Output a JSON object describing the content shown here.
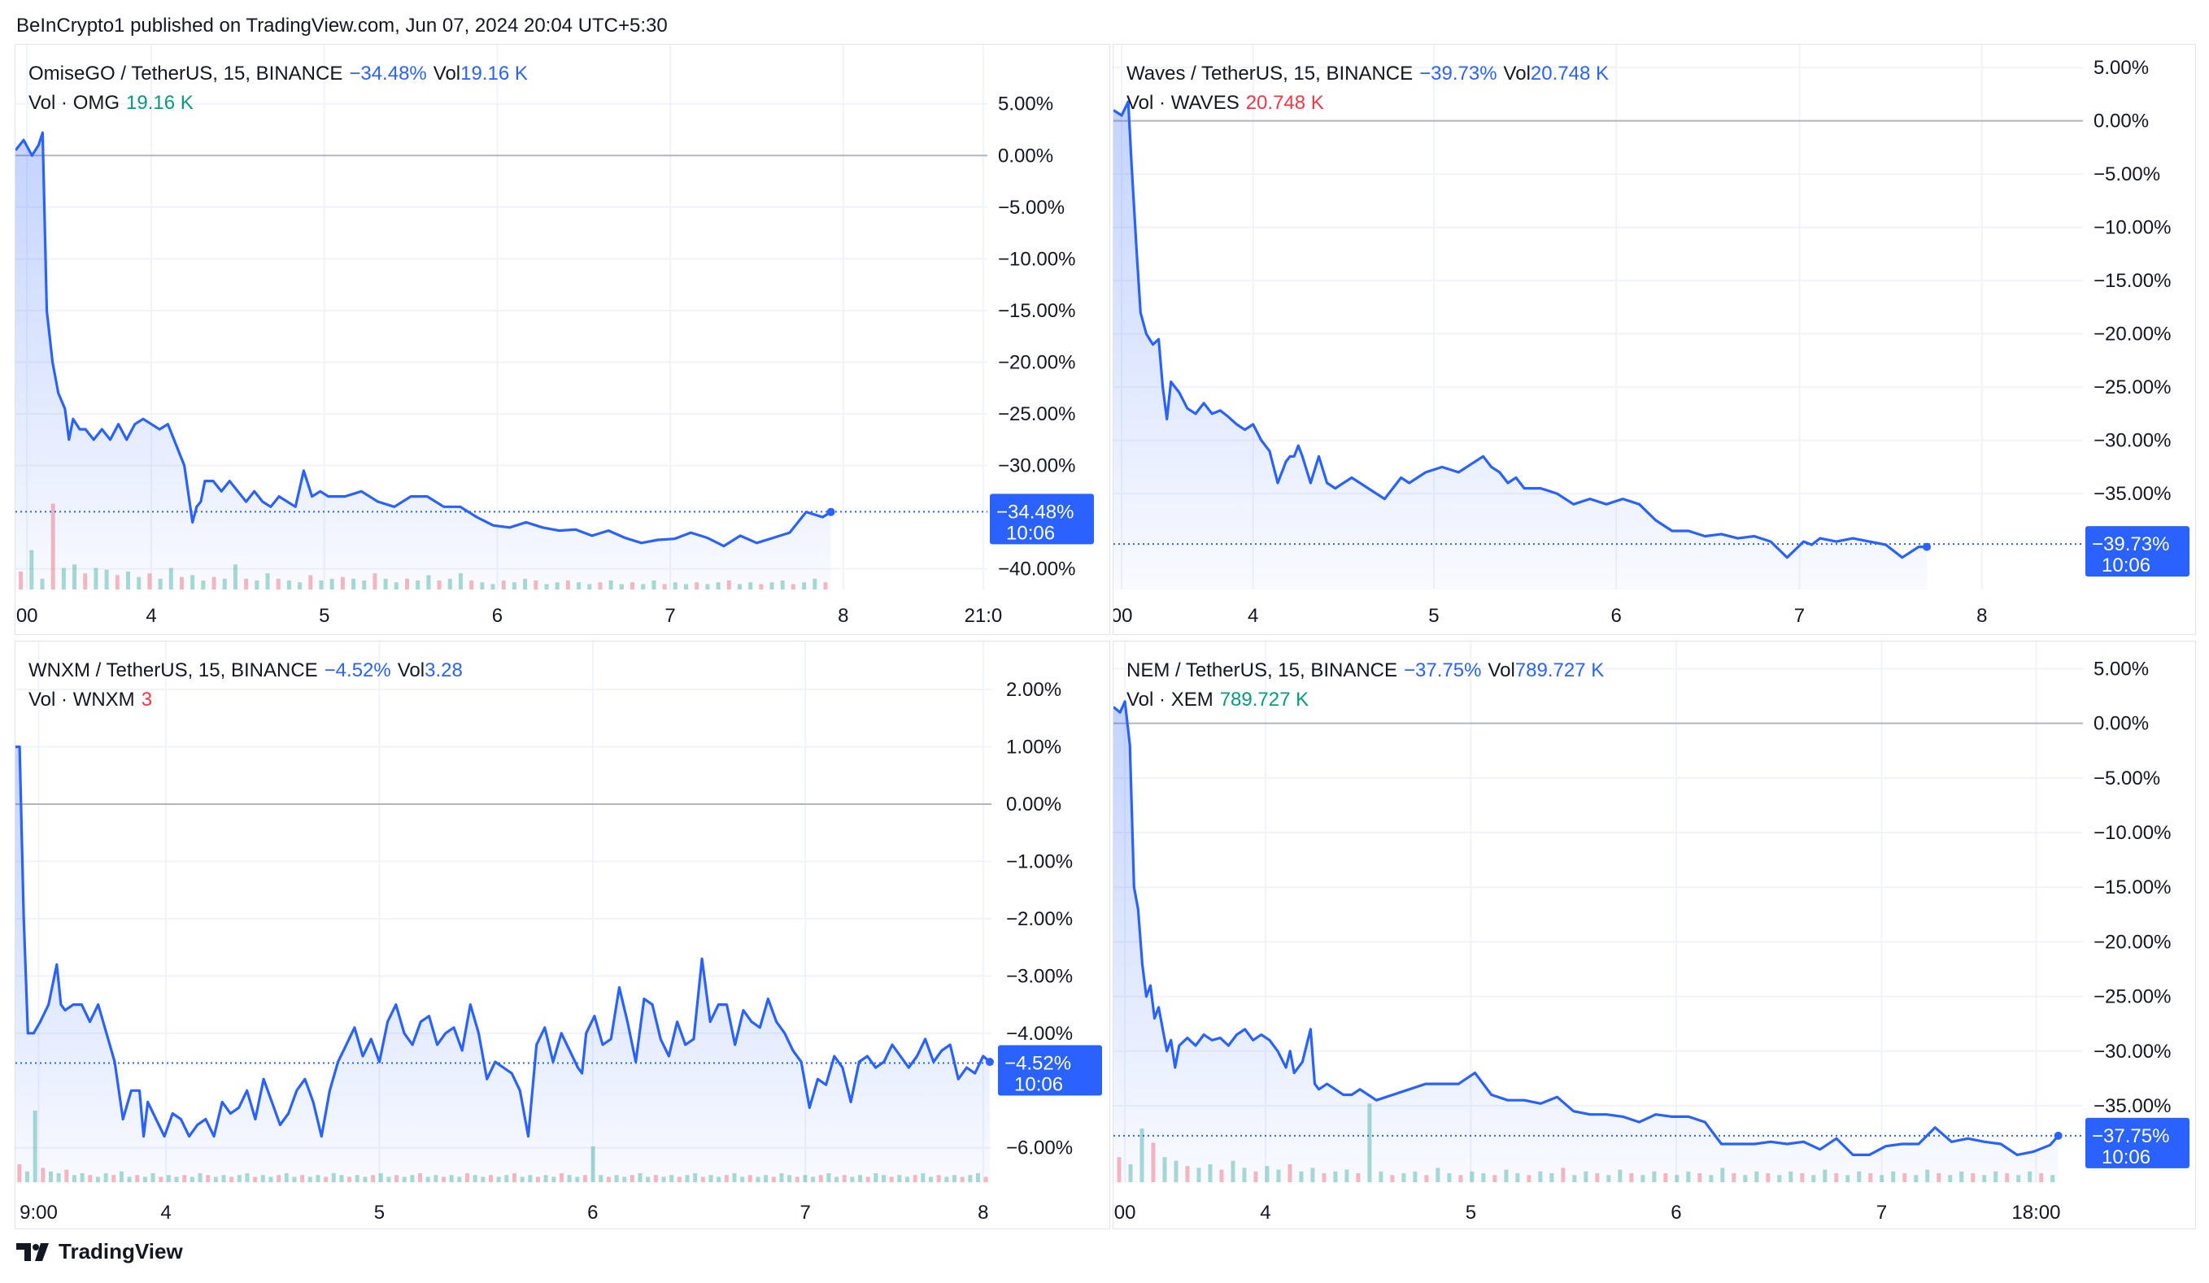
{
  "header": {
    "publisher": "BeInCrypto1 published on TradingView.com, Jun 07, 2024 20:04 UTC+5:30"
  },
  "footer": {
    "brand": "TradingView",
    "logo_icon": "tradingview-logo-icon"
  },
  "colors": {
    "line": "#2962ff",
    "volume_up": "#089981",
    "volume_down": "#f23645",
    "grid": "#f0f3fa",
    "zero_line": "#b2b5be",
    "badge": "#2962ff"
  },
  "chart_data": [
    {
      "type": "line",
      "pair": "OmiseGO / TetherUS, 15, BINANCE",
      "change": "−34.48%",
      "vol_label": "Vol",
      "vol_value": "19.16 K",
      "volume_name": "Vol · OMG",
      "volume_value": "19.16 K",
      "volume_color": "teal",
      "last_value": -34.48,
      "last_label": "−34.48%",
      "badge_time": "10:06",
      "ylim": [
        -42,
        6
      ],
      "yticks": [
        5,
        0,
        -5,
        -10,
        -15,
        -20,
        -25,
        -30,
        -40
      ],
      "ytick_labels": [
        "5.00%",
        "0.00%",
        "−5.00%",
        "−10.00%",
        "−15.00%",
        "−20.00%",
        "−25.00%",
        "−30.00%",
        "−40.00%"
      ],
      "xlim": [
        0,
        1180
      ],
      "xticks": [
        {
          "x": 14,
          "label": "00"
        },
        {
          "x": 165,
          "label": "4"
        },
        {
          "x": 375,
          "label": "5"
        },
        {
          "x": 585,
          "label": "6"
        },
        {
          "x": 795,
          "label": "7"
        },
        {
          "x": 1005,
          "label": "8"
        },
        {
          "x": 1175,
          "label": "21:0"
        }
      ],
      "x": [
        0,
        10,
        20,
        28,
        33,
        38,
        45,
        52,
        60,
        65,
        70,
        78,
        85,
        95,
        105,
        115,
        125,
        135,
        145,
        155,
        165,
        175,
        185,
        195,
        205,
        215,
        220,
        225,
        230,
        235,
        240,
        250,
        260,
        270,
        280,
        290,
        300,
        310,
        320,
        330,
        340,
        350,
        360,
        370,
        380,
        400,
        420,
        440,
        460,
        480,
        500,
        520,
        540,
        560,
        580,
        600,
        620,
        640,
        660,
        680,
        700,
        720,
        740,
        760,
        780,
        800,
        820,
        840,
        860,
        880,
        900,
        920,
        940,
        960,
        980,
        990
      ],
      "y": [
        0.5,
        1.5,
        0,
        1.0,
        2.2,
        -15,
        -20,
        -23,
        -24.5,
        -27.5,
        -25.5,
        -26.5,
        -26.5,
        -27.5,
        -26.5,
        -27.5,
        -26,
        -27.5,
        -26,
        -25.5,
        -26,
        -26.5,
        -26,
        -28,
        -30,
        -35.5,
        -34,
        -33.5,
        -31.5,
        -31.5,
        -31.5,
        -32.5,
        -31.5,
        -32.5,
        -33.5,
        -32.5,
        -33.5,
        -34,
        -33,
        -33.5,
        -34,
        -30.5,
        -33,
        -32.5,
        -33,
        -33,
        -32.5,
        -33.5,
        -34,
        -33,
        -33,
        -34,
        -34,
        -35,
        -35.8,
        -36,
        -35.5,
        -36,
        -36.3,
        -36.2,
        -36.8,
        -36.3,
        -37,
        -37.5,
        -37.2,
        -37.1,
        -36.5,
        -37,
        -37.8,
        -36.8,
        -37.5,
        -37.0,
        -36.5,
        -34.5,
        -35,
        -34.5
      ],
      "volume": [
        10,
        22,
        6,
        48,
        12,
        14,
        9,
        12,
        11,
        8,
        10,
        7,
        9,
        6,
        12,
        7,
        8,
        5,
        7,
        6,
        14,
        6,
        5,
        9,
        6,
        5,
        4,
        8,
        5,
        6,
        7,
        6,
        5,
        9,
        6,
        4,
        6,
        5,
        8,
        5,
        6,
        9,
        5,
        4,
        3,
        5,
        4,
        6,
        5,
        3,
        4,
        5,
        4,
        3,
        4,
        5,
        3,
        4,
        3,
        5,
        3,
        4,
        3,
        4,
        3,
        4,
        5,
        3,
        4,
        3,
        4,
        5,
        3,
        4,
        6,
        4
      ]
    },
    {
      "type": "line",
      "pair": "Waves / TetherUS, 15, BINANCE",
      "change": "−39.73%",
      "vol_label": "Vol",
      "vol_value": "20.748 K",
      "volume_name": "Vol · WAVES",
      "volume_value": "20.748 K",
      "volume_color": "red",
      "last_value": -39.73,
      "last_label": "−39.73%",
      "badge_time": "10:06",
      "ylim": [
        -44,
        6
      ],
      "yticks": [
        5,
        0,
        -5,
        -10,
        -15,
        -20,
        -25,
        -30,
        -35
      ],
      "ytick_labels": [
        "5.00%",
        "0.00%",
        "−5.00%",
        "−10.00%",
        "−15.00%",
        "−20.00%",
        "−25.00%",
        "−30.00%",
        "−35.00%"
      ],
      "xlim": [
        0,
        1180
      ],
      "xticks": [
        {
          "x": 10,
          "label": "00"
        },
        {
          "x": 170,
          "label": "4"
        },
        {
          "x": 390,
          "label": "5"
        },
        {
          "x": 612,
          "label": "6"
        },
        {
          "x": 835,
          "label": "7"
        },
        {
          "x": 1057,
          "label": "8"
        }
      ],
      "x": [
        0,
        10,
        18,
        22,
        28,
        33,
        40,
        48,
        55,
        60,
        65,
        70,
        80,
        90,
        100,
        110,
        120,
        130,
        140,
        150,
        160,
        170,
        180,
        190,
        200,
        210,
        215,
        220,
        225,
        230,
        240,
        250,
        260,
        270,
        280,
        290,
        300,
        310,
        320,
        330,
        340,
        350,
        360,
        380,
        400,
        420,
        440,
        450,
        460,
        470,
        480,
        490,
        500,
        520,
        540,
        560,
        580,
        600,
        620,
        640,
        660,
        680,
        700,
        720,
        740,
        760,
        780,
        800,
        820,
        840,
        850,
        860,
        880,
        900,
        920,
        940,
        960,
        980,
        990
      ],
      "y": [
        1.0,
        0.5,
        1.8,
        -4,
        -12,
        -18,
        -20,
        -21,
        -20.5,
        -25,
        -28,
        -24.5,
        -25.5,
        -27,
        -27.5,
        -26.5,
        -27.5,
        -27.2,
        -27.8,
        -28.5,
        -29,
        -28.5,
        -30,
        -31,
        -34,
        -32,
        -31.5,
        -31.5,
        -30.5,
        -31.5,
        -34,
        -31.5,
        -34,
        -34.5,
        -34,
        -33.5,
        -34,
        -34.5,
        -35,
        -35.5,
        -34.5,
        -33.5,
        -34,
        -33,
        -32.5,
        -33,
        -32,
        -31.5,
        -32.5,
        -33,
        -34,
        -33.5,
        -34.5,
        -34.5,
        -35,
        -36,
        -35.5,
        -36,
        -35.5,
        -36,
        -37.5,
        -38.5,
        -38.5,
        -39,
        -38.8,
        -39.2,
        -39,
        -39.5,
        -41,
        -39.5,
        -39.8,
        -39.2,
        -39.5,
        -39.2,
        -39.5,
        -39.8,
        -41,
        -40,
        -40
      ]
    },
    {
      "type": "line",
      "pair": "WNXM / TetherUS, 15, BINANCE",
      "change": "−4.52%",
      "vol_label": "Vol",
      "vol_value": "3.28",
      "volume_name": "Vol · WNXM",
      "volume_value": "3",
      "volume_color": "red",
      "last_value": -4.52,
      "last_label": "−4.52%",
      "badge_time": "10:06",
      "ylim": [
        -6.6,
        2.2
      ],
      "yticks": [
        2,
        1,
        0,
        -1,
        -2,
        -3,
        -4,
        -6
      ],
      "ytick_labels": [
        "2.00%",
        "1.00%",
        "0.00%",
        "−1.00%",
        "−2.00%",
        "−3.00%",
        "−4.00%",
        "−6.00%"
      ],
      "xlim": [
        0,
        1180
      ],
      "xticks": [
        {
          "x": 28,
          "label": "9:00"
        },
        {
          "x": 182,
          "label": "4"
        },
        {
          "x": 440,
          "label": "5"
        },
        {
          "x": 698,
          "label": "6"
        },
        {
          "x": 955,
          "label": "7"
        },
        {
          "x": 1170,
          "label": "8"
        }
      ],
      "x": [
        0,
        5,
        10,
        15,
        22,
        30,
        40,
        50,
        55,
        60,
        70,
        80,
        90,
        100,
        110,
        120,
        130,
        140,
        150,
        155,
        160,
        170,
        180,
        190,
        200,
        210,
        220,
        230,
        240,
        250,
        260,
        270,
        280,
        290,
        300,
        310,
        320,
        330,
        340,
        350,
        360,
        370,
        380,
        390,
        400,
        410,
        420,
        430,
        440,
        450,
        460,
        470,
        480,
        490,
        500,
        510,
        520,
        530,
        540,
        550,
        560,
        570,
        580,
        590,
        600,
        610,
        620,
        630,
        640,
        650,
        660,
        670,
        680,
        685,
        690,
        700,
        710,
        720,
        730,
        740,
        750,
        760,
        770,
        780,
        790,
        800,
        810,
        820,
        830,
        840,
        850,
        860,
        870,
        880,
        890,
        900,
        910,
        920,
        930,
        940,
        950,
        960,
        970,
        980,
        990,
        1000,
        1010,
        1020,
        1030,
        1040,
        1050,
        1060,
        1070,
        1080,
        1090,
        1100,
        1110,
        1120,
        1130,
        1140,
        1150,
        1160,
        1170,
        1178
      ],
      "y": [
        1.0,
        1.0,
        -2.0,
        -4.0,
        -4.0,
        -3.8,
        -3.5,
        -2.8,
        -3.5,
        -3.6,
        -3.5,
        -3.5,
        -3.8,
        -3.5,
        -4.0,
        -4.5,
        -5.5,
        -5.0,
        -5.0,
        -5.8,
        -5.2,
        -5.5,
        -5.8,
        -5.4,
        -5.5,
        -5.8,
        -5.6,
        -5.5,
        -5.8,
        -5.2,
        -5.4,
        -5.3,
        -5.0,
        -5.5,
        -4.8,
        -5.2,
        -5.6,
        -5.4,
        -5.0,
        -4.8,
        -5.2,
        -5.8,
        -5.0,
        -4.5,
        -4.2,
        -3.9,
        -4.4,
        -4.1,
        -4.5,
        -3.8,
        -3.5,
        -4.0,
        -4.2,
        -3.8,
        -3.7,
        -4.2,
        -4.0,
        -3.9,
        -4.3,
        -3.5,
        -4.0,
        -4.8,
        -4.5,
        -4.6,
        -4.7,
        -5.0,
        -5.8,
        -4.2,
        -3.9,
        -4.5,
        -4.0,
        -4.3,
        -4.6,
        -4.7,
        -4.0,
        -3.7,
        -4.2,
        -4.1,
        -3.2,
        -3.8,
        -4.5,
        -3.4,
        -3.5,
        -4.1,
        -4.4,
        -3.8,
        -4.2,
        -4.1,
        -2.7,
        -3.8,
        -3.5,
        -3.5,
        -4.2,
        -3.6,
        -3.8,
        -3.9,
        -3.4,
        -3.8,
        -4.0,
        -4.3,
        -4.5,
        -5.3,
        -4.8,
        -4.9,
        -4.4,
        -4.6,
        -5.2,
        -4.5,
        -4.4,
        -4.6,
        -4.5,
        -4.2,
        -4.4,
        -4.6,
        -4.4,
        -4.1,
        -4.5,
        -4.3,
        -4.2,
        -4.8,
        -4.6,
        -4.7,
        -4.4,
        -4.5
      ],
      "volume": [
        10,
        6,
        40,
        8,
        6,
        5,
        7,
        4,
        5,
        4,
        3,
        5,
        4,
        6,
        3,
        4,
        3,
        5,
        3,
        4,
        3,
        4,
        3,
        5,
        4,
        3,
        4,
        3,
        4,
        5,
        3,
        4,
        3,
        4,
        5,
        3,
        4,
        3,
        4,
        3,
        5,
        4,
        3,
        4,
        3,
        4,
        5,
        3,
        4,
        3,
        4,
        5,
        3,
        4,
        3,
        4,
        3,
        5,
        4,
        3,
        4,
        3,
        4,
        5,
        3,
        4,
        3,
        4,
        3,
        5,
        4,
        3,
        4,
        20,
        4,
        3,
        4,
        3,
        4,
        5,
        3,
        4,
        3,
        4,
        3,
        4,
        5,
        3,
        4,
        3,
        4,
        5,
        3,
        4,
        3,
        4,
        3,
        5,
        4,
        3,
        4,
        3,
        4,
        5,
        3,
        4,
        3,
        4,
        3,
        5,
        4,
        3,
        4,
        3,
        4,
        5,
        3,
        4,
        3,
        4,
        3,
        4,
        5,
        3
      ]
    },
    {
      "type": "line",
      "pair": "NEM / TetherUS, 15, BINANCE",
      "change": "−37.75%",
      "vol_label": "Vol",
      "vol_value": "789.727 K",
      "volume_name": "Vol · XEM",
      "volume_value": "789.727 K",
      "volume_color": "teal",
      "last_value": -37.75,
      "last_label": "−37.75%",
      "badge_time": "10:06",
      "ylim": [
        -42,
        6
      ],
      "yticks": [
        5,
        0,
        -5,
        -10,
        -15,
        -20,
        -25,
        -30,
        -35
      ],
      "ytick_labels": [
        "5.00%",
        "0.00%",
        "−5.00%",
        "−10.00%",
        "−15.00%",
        "−20.00%",
        "−25.00%",
        "−30.00%",
        "−35.00%"
      ],
      "xlim": [
        0,
        1180
      ],
      "xticks": [
        {
          "x": 14,
          "label": "00"
        },
        {
          "x": 185,
          "label": "4"
        },
        {
          "x": 435,
          "label": "5"
        },
        {
          "x": 685,
          "label": "6"
        },
        {
          "x": 935,
          "label": "7"
        },
        {
          "x": 1123,
          "label": "18:00"
        }
      ],
      "x": [
        0,
        8,
        14,
        20,
        25,
        30,
        35,
        40,
        45,
        50,
        55,
        60,
        65,
        70,
        75,
        80,
        90,
        100,
        110,
        120,
        130,
        140,
        150,
        160,
        170,
        180,
        190,
        200,
        210,
        215,
        220,
        230,
        240,
        245,
        250,
        260,
        270,
        280,
        290,
        300,
        320,
        340,
        360,
        380,
        400,
        420,
        440,
        460,
        480,
        500,
        520,
        540,
        560,
        580,
        600,
        620,
        640,
        660,
        680,
        700,
        720,
        740,
        760,
        780,
        800,
        820,
        840,
        860,
        880,
        900,
        920,
        940,
        960,
        980,
        1000,
        1020,
        1040,
        1060,
        1080,
        1100,
        1120,
        1140,
        1150
      ],
      "y": [
        1.5,
        1.0,
        2.0,
        -2,
        -15,
        -17,
        -22,
        -25,
        -24,
        -27,
        -26,
        -28,
        -30,
        -29,
        -31.5,
        -29.5,
        -28.8,
        -29.5,
        -28.5,
        -29,
        -28.8,
        -29.5,
        -28.5,
        -28,
        -29,
        -28.5,
        -29,
        -30,
        -31.5,
        -30,
        -32,
        -31,
        -28,
        -33,
        -33.5,
        -33,
        -33.5,
        -34,
        -34,
        -33.5,
        -34.5,
        -34,
        -33.5,
        -33,
        -33,
        -33,
        -32,
        -34,
        -34.5,
        -34.5,
        -34.8,
        -34.2,
        -35.5,
        -35.8,
        -35.8,
        -36.0,
        -36.5,
        -35.8,
        -36,
        -36,
        -36.5,
        -38.5,
        -38.5,
        -38.5,
        -38.3,
        -38.5,
        -38.3,
        -39,
        -38,
        -39.5,
        -39.5,
        -38.7,
        -38.5,
        -38.5,
        -37,
        -38.3,
        -38,
        -38.3,
        -38.5,
        -39.5,
        -39.2,
        -38.6,
        -37.75
      ],
      "volume": [
        14,
        10,
        30,
        22,
        14,
        12,
        9,
        8,
        10,
        7,
        12,
        8,
        6,
        9,
        7,
        10,
        6,
        8,
        5,
        6,
        7,
        5,
        44,
        6,
        4,
        5,
        6,
        4,
        8,
        5,
        4,
        6,
        5,
        4,
        7,
        5,
        4,
        6,
        5,
        8,
        4,
        6,
        5,
        4,
        7,
        5,
        4,
        6,
        5,
        4,
        6,
        5,
        4,
        8,
        5,
        4,
        6,
        5,
        4,
        6,
        5,
        4,
        7,
        5,
        4,
        6,
        5,
        4,
        6,
        5,
        4,
        7,
        5,
        4,
        6,
        5,
        4,
        6,
        5,
        4,
        6,
        5,
        4
      ]
    }
  ]
}
